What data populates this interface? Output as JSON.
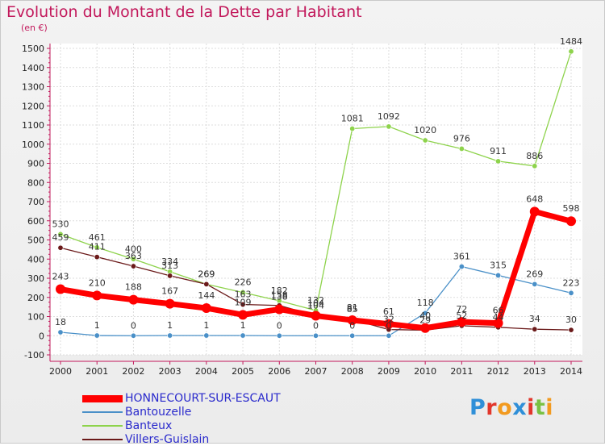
{
  "header": {
    "title": "Evolution du Montant de la Dette par Habitant",
    "unit": "(en €)"
  },
  "brand": {
    "letters": [
      {
        "ch": "P",
        "color": "#2f8fd8"
      },
      {
        "ch": "r",
        "color": "#e2362b"
      },
      {
        "ch": "o",
        "color": "#f29a1f"
      },
      {
        "ch": "x",
        "color": "#2f8fd8"
      },
      {
        "ch": "i",
        "color": "#e2362b"
      },
      {
        "ch": "t",
        "color": "#7ac143"
      },
      {
        "ch": "i",
        "color": "#f29a1f"
      }
    ]
  },
  "chart_data": {
    "type": "line",
    "title": "Evolution du Montant de la Dette par Habitant",
    "ylabel": "(en €)",
    "xlabel": "",
    "x": [
      "2000",
      "2001",
      "2002",
      "2003",
      "2004",
      "2005",
      "2006",
      "2007",
      "2008",
      "2009",
      "2010",
      "2011",
      "2012",
      "2013",
      "2014"
    ],
    "ylim": [
      -100,
      1500
    ],
    "yticks": [
      -100,
      0,
      100,
      200,
      300,
      400,
      500,
      600,
      700,
      800,
      900,
      1000,
      1100,
      1200,
      1300,
      1400,
      1500
    ],
    "grid": true,
    "legend_position": "bottom-left",
    "series": [
      {
        "name": "HONNECOURT-SUR-ESCAUT",
        "color": "#ff0000",
        "values": [
          243,
          210,
          188,
          167,
          144,
          109,
          138,
          104,
          81,
          61,
          40,
          72,
          66,
          648,
          598
        ]
      },
      {
        "name": "Bantouzelle",
        "color": "#4a90c8",
        "values": [
          18,
          1,
          0,
          1,
          1,
          1,
          0,
          0,
          0,
          0,
          118,
          361,
          315,
          269,
          223
        ]
      },
      {
        "name": "Banteux",
        "color": "#8ed34c",
        "values": [
          530,
          461,
          400,
          334,
          269,
          226,
          182,
          132,
          1081,
          1092,
          1020,
          976,
          911,
          886,
          1484
        ]
      },
      {
        "name": "Villers-Guislain",
        "color": "#6b1a1a",
        "values": [
          459,
          411,
          363,
          313,
          269,
          163,
          158,
          104,
          85,
          32,
          29,
          52,
          44,
          34,
          30
        ]
      }
    ]
  }
}
